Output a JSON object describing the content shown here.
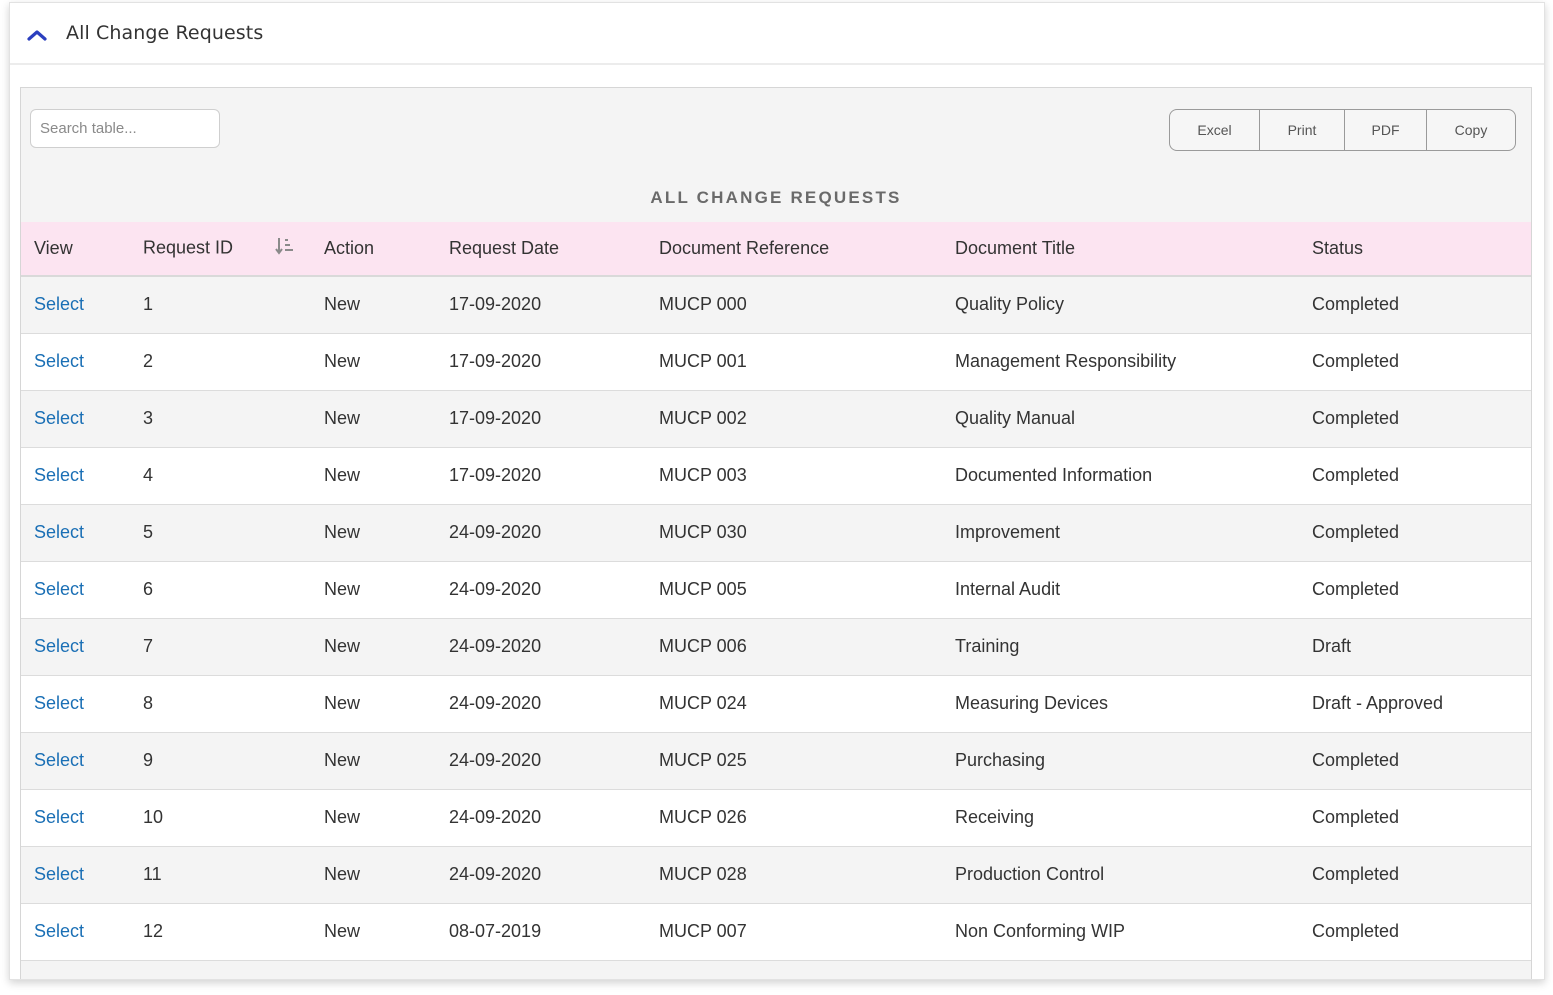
{
  "header": {
    "title": "All Change Requests",
    "collapse_icon": "chevron-up-icon"
  },
  "toolbar": {
    "search_placeholder": "Search table...",
    "buttons": [
      "Excel",
      "Print",
      "PDF",
      "Copy"
    ]
  },
  "table": {
    "caption": "ALL CHANGE REQUESTS",
    "sort_icon": "sort-descending-icon",
    "columns": [
      "View",
      "Request ID",
      "Action",
      "Request Date",
      "Document Reference",
      "Document Title",
      "Status"
    ],
    "rows": [
      {
        "view": "Select",
        "id": "1",
        "action": "New",
        "date": "17-09-2020",
        "ref": "MUCP 000",
        "title": "Quality Policy",
        "status": "Completed"
      },
      {
        "view": "Select",
        "id": "2",
        "action": "New",
        "date": "17-09-2020",
        "ref": "MUCP 001",
        "title": "Management Responsibility",
        "status": "Completed"
      },
      {
        "view": "Select",
        "id": "3",
        "action": "New",
        "date": "17-09-2020",
        "ref": "MUCP 002",
        "title": "Quality Manual",
        "status": "Completed"
      },
      {
        "view": "Select",
        "id": "4",
        "action": "New",
        "date": "17-09-2020",
        "ref": "MUCP 003",
        "title": "Documented Information",
        "status": "Completed"
      },
      {
        "view": "Select",
        "id": "5",
        "action": "New",
        "date": "24-09-2020",
        "ref": "MUCP 030",
        "title": "Improvement",
        "status": "Completed"
      },
      {
        "view": "Select",
        "id": "6",
        "action": "New",
        "date": "24-09-2020",
        "ref": "MUCP 005",
        "title": "Internal Audit",
        "status": "Completed"
      },
      {
        "view": "Select",
        "id": "7",
        "action": "New",
        "date": "24-09-2020",
        "ref": "MUCP 006",
        "title": "Training",
        "status": "Draft"
      },
      {
        "view": "Select",
        "id": "8",
        "action": "New",
        "date": "24-09-2020",
        "ref": "MUCP 024",
        "title": "Measuring Devices",
        "status": "Draft - Approved"
      },
      {
        "view": "Select",
        "id": "9",
        "action": "New",
        "date": "24-09-2020",
        "ref": "MUCP 025",
        "title": "Purchasing",
        "status": "Completed"
      },
      {
        "view": "Select",
        "id": "10",
        "action": "New",
        "date": "24-09-2020",
        "ref": "MUCP 026",
        "title": "Receiving",
        "status": "Completed"
      },
      {
        "view": "Select",
        "id": "11",
        "action": "New",
        "date": "24-09-2020",
        "ref": "MUCP 028",
        "title": "Production Control",
        "status": "Completed"
      },
      {
        "view": "Select",
        "id": "12",
        "action": "New",
        "date": "08-07-2019",
        "ref": "MUCP 007",
        "title": "Non Conforming WIP",
        "status": "Completed"
      }
    ]
  },
  "colors": {
    "link": "#1a6fb5",
    "header_row": "#fce4f1",
    "chevron": "#2b3fbf"
  }
}
